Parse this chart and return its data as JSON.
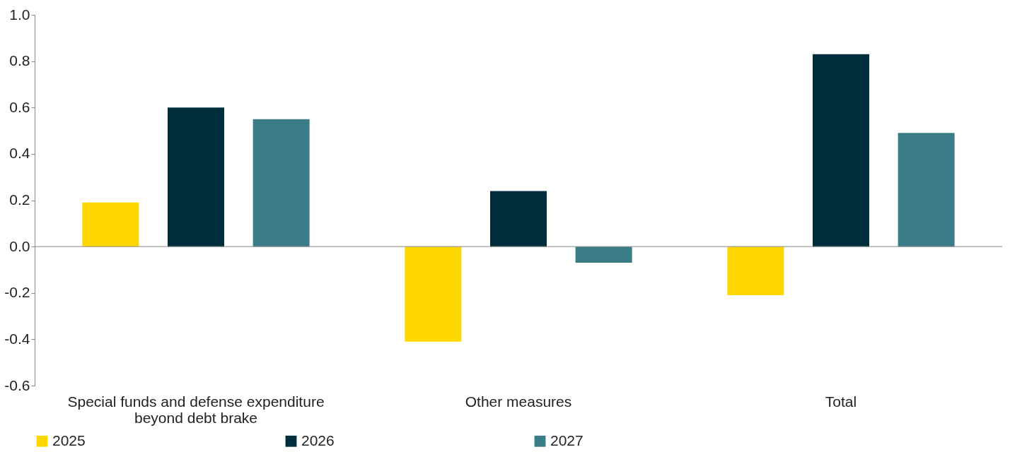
{
  "chart_data": {
    "type": "bar",
    "categories": [
      "Special funds and defense expenditure beyond debt brake",
      "Other measures",
      "Total"
    ],
    "series": [
      {
        "name": "2025",
        "color": "#ffd700",
        "values": [
          0.19,
          -0.41,
          -0.21
        ]
      },
      {
        "name": "2026",
        "color": "#002d3c",
        "values": [
          0.6,
          0.24,
          0.83
        ]
      },
      {
        "name": "2027",
        "color": "#3a7d87",
        "values": [
          0.55,
          -0.07,
          0.49
        ]
      }
    ],
    "ylim": [
      -0.6,
      1.0
    ],
    "yticks": [
      {
        "value": -0.6,
        "label": "-0.6"
      },
      {
        "value": -0.4,
        "label": "-0.4"
      },
      {
        "value": -0.2,
        "label": "-0.2"
      },
      {
        "value": 0,
        "label": "0.0"
      },
      {
        "value": 0.2,
        "label": "0.2"
      },
      {
        "value": 0.4,
        "label": "0.4"
      },
      {
        "value": 0.6,
        "label": "0.6"
      },
      {
        "value": 0.8,
        "label": "0.8"
      },
      {
        "value": 1,
        "label": "1.0"
      }
    ],
    "ref_lines": [
      {
        "axis": "y",
        "value": 0,
        "color": "#888888"
      }
    ],
    "legend": "bottom"
  }
}
